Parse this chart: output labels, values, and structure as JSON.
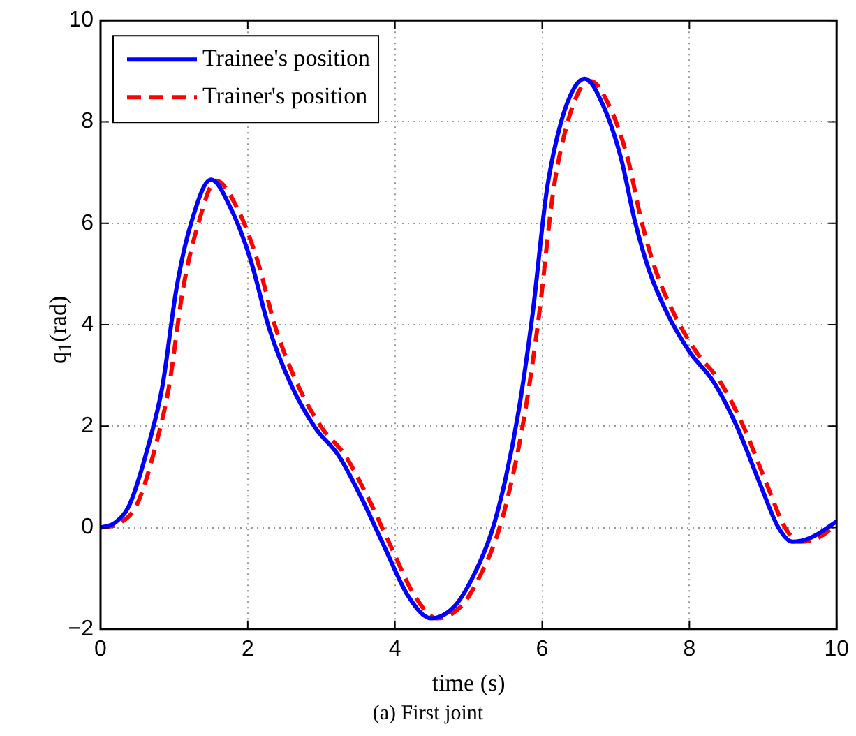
{
  "chart_data": {
    "type": "line",
    "xlabel": "time (s)",
    "ylabel": "q$_{1}$(rad)",
    "annotations": [
      "(a) First joint"
    ],
    "xlim": [
      0,
      10
    ],
    "xticks": [
      0,
      2,
      4,
      6,
      8,
      10
    ],
    "ylim": [
      -2,
      10
    ],
    "yticks": [
      -2,
      0,
      2,
      4,
      6,
      8,
      10
    ],
    "grid": true,
    "legend": "top left",
    "marker": "none",
    "series": [
      {
        "name": "Trainee's position",
        "color": "#0000ff",
        "line_style": "solid",
        "x": [
          0,
          0.2,
          0.4,
          0.65,
          0.84,
          1.03,
          1.22,
          1.5,
          1.79,
          2.04,
          2.29,
          2.6,
          2.92,
          3.23,
          3.55,
          3.86,
          4.18,
          4.49,
          4.81,
          5.06,
          5.31,
          5.5,
          5.68,
          5.87,
          6.06,
          6.25,
          6.44,
          6.58,
          6.82,
          7.07,
          7.26,
          7.45,
          7.7,
          8.01,
          8.33,
          8.64,
          8.96,
          9.21,
          9.4,
          9.65,
          10
        ],
        "values": [
          0,
          0.1,
          0.47,
          1.62,
          2.78,
          4.7,
          5.95,
          6.86,
          6.23,
          5.27,
          3.93,
          2.78,
          1.96,
          1.43,
          0.57,
          -0.39,
          -1.35,
          -1.79,
          -1.55,
          -0.97,
          -0.1,
          0.95,
          2.3,
          4.22,
          6.62,
          7.96,
          8.68,
          8.85,
          8.35,
          7.29,
          6.04,
          5.08,
          4.22,
          3.45,
          2.87,
          2.01,
          0.86,
          0,
          -0.28,
          -0.2,
          0.12
        ]
      },
      {
        "name": "Trainer's position",
        "color": "#ff0000",
        "line_style": "dashed",
        "x": [
          0,
          0.25,
          0.5,
          0.75,
          0.93,
          1.12,
          1.32,
          1.57,
          1.88,
          2.13,
          2.38,
          2.69,
          3.01,
          3.32,
          3.64,
          3.95,
          4.27,
          4.57,
          4.9,
          5.15,
          5.4,
          5.59,
          5.77,
          5.96,
          6.15,
          6.34,
          6.53,
          6.66,
          6.9,
          7.16,
          7.35,
          7.54,
          7.79,
          8.1,
          8.42,
          8.73,
          9.05,
          9.3,
          9.5,
          9.75,
          10
        ],
        "values": [
          0,
          0.08,
          0.47,
          1.62,
          2.78,
          4.7,
          5.95,
          6.84,
          6.23,
          5.27,
          3.93,
          2.78,
          1.96,
          1.43,
          0.57,
          -0.39,
          -1.35,
          -1.79,
          -1.55,
          -0.97,
          -0.1,
          0.95,
          2.3,
          4.22,
          6.62,
          7.96,
          8.68,
          8.8,
          8.35,
          7.29,
          6.04,
          5.08,
          4.22,
          3.45,
          2.87,
          2.01,
          0.86,
          0,
          -0.28,
          -0.2,
          0.05
        ]
      }
    ]
  }
}
